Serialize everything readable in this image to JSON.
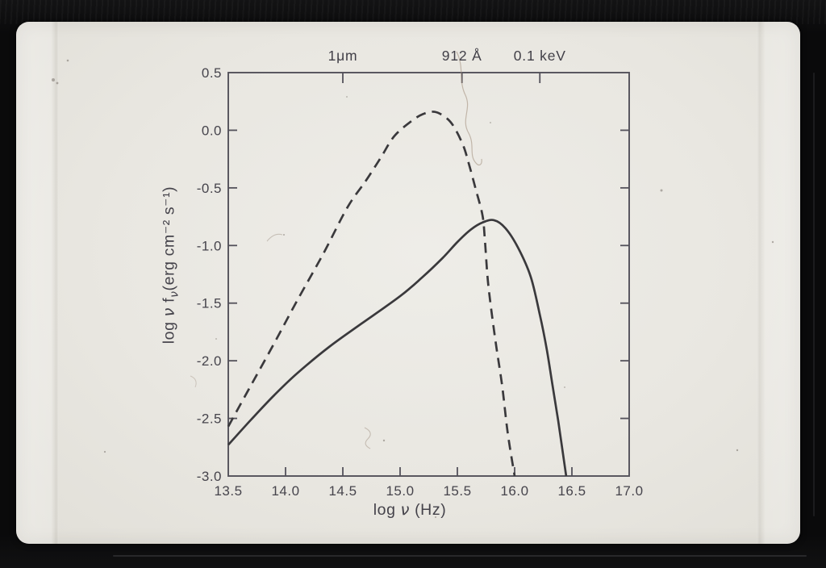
{
  "colors": {
    "frame_black": "#0a0a0b",
    "slide_background": "#e8e6e0",
    "axis_ink": "#53515a",
    "curve_ink": "#3a393c",
    "text_ink": "#45434b"
  },
  "chart_data": {
    "type": "line",
    "title": "",
    "xlabel": "log ν (Hz)",
    "ylabel": "log ν fν(erg cm⁻² s⁻¹)",
    "xlabel_parts": {
      "pre": "log ",
      "nu": "ν",
      "post": " (Hz)"
    },
    "ylabel_parts": {
      "pre": "log ",
      "nu1": "ν",
      "mid": " f",
      "nu2": "ν",
      "post": "(erg cm⁻² s⁻¹)"
    },
    "xlim": [
      13.5,
      17.0
    ],
    "ylim": [
      -3.0,
      0.5
    ],
    "grid": false,
    "legend": null,
    "xticks": {
      "values": [
        13.5,
        14.0,
        14.5,
        15.0,
        15.5,
        16.0,
        16.5,
        17.0
      ],
      "labels": [
        "13.5",
        "14.0",
        "14.5",
        "15.0",
        "15.5",
        "16.0",
        "16.5",
        "17.0"
      ]
    },
    "yticks": {
      "values": [
        0.5,
        0.0,
        -0.5,
        -1.0,
        -1.5,
        -2.0,
        -2.5,
        -3.0
      ],
      "labels": [
        "0.5",
        "0.0",
        "-0.5",
        "-1.0",
        "-1.5",
        "-2.0",
        "-2.5",
        "-3.0"
      ]
    },
    "top_axis_markers": [
      {
        "label": "1μm",
        "value": 14.5
      },
      {
        "label": "912 Å",
        "value": 15.54
      },
      {
        "label": "0.1 keV",
        "value": 16.22
      }
    ],
    "series": [
      {
        "name": "dashed curve",
        "line_style": "dashed",
        "peak": {
          "x": 15.3,
          "y": 0.16
        },
        "points": [
          [
            13.5,
            -2.57
          ],
          [
            13.7,
            -2.21
          ],
          [
            13.9,
            -1.85
          ],
          [
            14.1,
            -1.48
          ],
          [
            14.33,
            -1.07
          ],
          [
            14.54,
            -0.67
          ],
          [
            14.7,
            -0.44
          ],
          [
            14.83,
            -0.24
          ],
          [
            14.95,
            -0.05
          ],
          [
            15.1,
            0.08
          ],
          [
            15.2,
            0.14
          ],
          [
            15.3,
            0.16
          ],
          [
            15.4,
            0.11
          ],
          [
            15.47,
            0.03
          ],
          [
            15.55,
            -0.13
          ],
          [
            15.6,
            -0.29
          ],
          [
            15.66,
            -0.51
          ],
          [
            15.72,
            -0.74
          ],
          [
            15.74,
            -0.95
          ],
          [
            15.77,
            -1.34
          ],
          [
            15.83,
            -1.81
          ],
          [
            15.89,
            -2.21
          ],
          [
            15.94,
            -2.63
          ],
          [
            16.0,
            -3.0
          ]
        ]
      },
      {
        "name": "solid curve",
        "line_style": "solid",
        "peak": {
          "x": 15.8,
          "y": -0.78
        },
        "points": [
          [
            13.5,
            -2.73
          ],
          [
            13.7,
            -2.51
          ],
          [
            13.9,
            -2.3
          ],
          [
            14.1,
            -2.11
          ],
          [
            14.38,
            -1.88
          ],
          [
            14.66,
            -1.68
          ],
          [
            15.0,
            -1.44
          ],
          [
            15.2,
            -1.27
          ],
          [
            15.37,
            -1.11
          ],
          [
            15.5,
            -0.97
          ],
          [
            15.62,
            -0.86
          ],
          [
            15.72,
            -0.8
          ],
          [
            15.82,
            -0.78
          ],
          [
            15.92,
            -0.85
          ],
          [
            16.03,
            -1.02
          ],
          [
            16.14,
            -1.27
          ],
          [
            16.22,
            -1.6
          ],
          [
            16.28,
            -1.9
          ],
          [
            16.33,
            -2.21
          ],
          [
            16.38,
            -2.52
          ],
          [
            16.45,
            -3.0
          ]
        ]
      }
    ]
  }
}
